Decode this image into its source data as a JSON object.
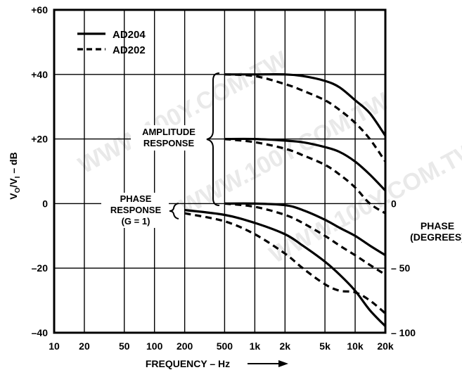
{
  "chart_data": {
    "type": "line",
    "xlabel": "FREQUENCY – Hz",
    "ylabel_main": "V",
    "ylabel_sub_o": "O",
    "ylabel_slash": "/V",
    "ylabel_sub_i": "I",
    "ylabel_unit": " – dB",
    "right_axis_label_line1": "PHASE",
    "right_axis_label_line2": "(DEGREES)",
    "x_scale": "log",
    "xlim": [
      10,
      20000
    ],
    "ylim": [
      -40,
      60
    ],
    "grid": true,
    "x_ticks": [
      {
        "value": 10,
        "label": "10"
      },
      {
        "value": 20,
        "label": "20"
      },
      {
        "value": 50,
        "label": "50"
      },
      {
        "value": 100,
        "label": "100"
      },
      {
        "value": 200,
        "label": "200"
      },
      {
        "value": 500,
        "label": "500"
      },
      {
        "value": 1000,
        "label": "1k"
      },
      {
        "value": 2000,
        "label": "2k"
      },
      {
        "value": 5000,
        "label": "5k"
      },
      {
        "value": 10000,
        "label": "10k"
      },
      {
        "value": 20000,
        "label": "20k"
      }
    ],
    "y_ticks": [
      {
        "value": 60,
        "label": "+60"
      },
      {
        "value": 40,
        "label": "+40"
      },
      {
        "value": 20,
        "label": "+20"
      },
      {
        "value": 0,
        "label": "0"
      },
      {
        "value": -20,
        "label": "–20"
      },
      {
        "value": -40,
        "label": "–40"
      }
    ],
    "phase_ticks": [
      {
        "value": 0,
        "label": "0"
      },
      {
        "value": -50,
        "label": "– 50"
      },
      {
        "value": -100,
        "label": "– 100"
      }
    ],
    "legend": {
      "placement": "top-left",
      "entries": [
        {
          "label": "AD204",
          "style": "solid"
        },
        {
          "label": "AD202",
          "style": "dashed"
        }
      ]
    },
    "annotations": {
      "amplitude_line1": "AMPLITUDE",
      "amplitude_line2": "RESPONSE",
      "phase_line1": "PHASE",
      "phase_line2": "RESPONSE",
      "phase_line3": "(G = 1)"
    },
    "series": [
      {
        "group": "amplitude",
        "style": "solid",
        "x": [
          500,
          1000,
          2000,
          3000,
          5000,
          7000,
          10000,
          14000,
          20000
        ],
        "y": [
          40,
          40,
          40,
          39.5,
          38,
          36,
          32,
          28,
          21
        ]
      },
      {
        "group": "amplitude",
        "style": "dashed",
        "x": [
          500,
          1000,
          2000,
          3000,
          5000,
          7000,
          10000,
          14000,
          20000
        ],
        "y": [
          40,
          39.5,
          37,
          35,
          32,
          29,
          25,
          20,
          13
        ]
      },
      {
        "group": "amplitude",
        "style": "solid",
        "x": [
          500,
          1000,
          2000,
          3000,
          5000,
          7000,
          10000,
          14000,
          20000
        ],
        "y": [
          20,
          20,
          19.5,
          19,
          17.5,
          16,
          13,
          9,
          4
        ]
      },
      {
        "group": "amplitude",
        "style": "dashed",
        "x": [
          500,
          1000,
          2000,
          3000,
          5000,
          7000,
          10000,
          14000,
          20000
        ],
        "y": [
          20,
          19,
          17,
          15,
          12,
          9,
          5,
          0,
          -3
        ]
      },
      {
        "group": "phase",
        "style": "solid",
        "x": [
          500,
          1000,
          2000,
          3000,
          5000,
          7000,
          10000,
          14000,
          20000
        ],
        "y": [
          0,
          0,
          -0.5,
          -2,
          -5,
          -7.5,
          -10,
          -13,
          -16
        ]
      },
      {
        "group": "phase",
        "style": "dashed",
        "x": [
          500,
          1000,
          2000,
          3000,
          5000,
          7000,
          10000,
          14000,
          20000
        ],
        "y": [
          0,
          -1,
          -3.5,
          -6,
          -10,
          -13,
          -16,
          -19,
          -22
        ]
      },
      {
        "group": "phase",
        "style": "solid",
        "x": [
          200,
          500,
          1000,
          2000,
          3000,
          5000,
          7000,
          10000,
          14000,
          20000
        ],
        "y": [
          -2,
          -3.5,
          -6,
          -9.5,
          -13,
          -18,
          -22,
          -27,
          -33,
          -38
        ]
      },
      {
        "group": "phase",
        "style": "dashed",
        "x": [
          200,
          500,
          1000,
          2000,
          3000,
          5000,
          7000,
          10000,
          14000,
          20000
        ],
        "y": [
          -3,
          -5.5,
          -9.5,
          -15.5,
          -20,
          -25,
          -27,
          -27.5,
          -30,
          -34
        ]
      }
    ]
  }
}
